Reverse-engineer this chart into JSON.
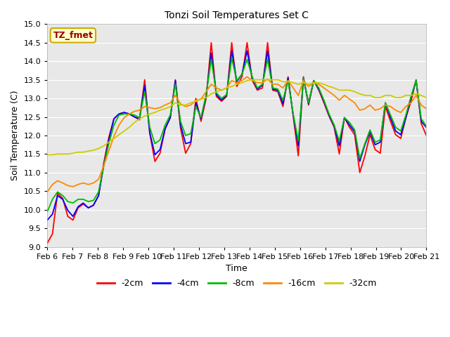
{
  "title": "Tonzi Soil Temperatures Set C",
  "xlabel": "Time",
  "ylabel": "Soil Temperature (C)",
  "ylim": [
    9.0,
    15.0
  ],
  "yticks": [
    9.0,
    9.5,
    10.0,
    10.5,
    11.0,
    11.5,
    12.0,
    12.5,
    13.0,
    13.5,
    14.0,
    14.5,
    15.0
  ],
  "outer_bg": "#ffffff",
  "plot_bg_color": "#e8e8e8",
  "legend_label": "TZ_fmet",
  "legend_bg": "#ffffcc",
  "legend_border": "#ccaa00",
  "series_colors": {
    "-2cm": "#ff0000",
    "-4cm": "#0000ff",
    "-8cm": "#00bb00",
    "-16cm": "#ff8800",
    "-32cm": "#cccc00"
  },
  "x_tick_labels": [
    "Feb 6",
    "Feb 7",
    "Feb 8",
    "Feb 9",
    "Feb 10",
    "Feb 11",
    "Feb 12",
    "Feb 13",
    "Feb 14",
    "Feb 15",
    "Feb 16",
    "Feb 17",
    "Feb 18",
    "Feb 19",
    "Feb 20",
    "Feb 21"
  ],
  "series": {
    "-2cm": [
      9.1,
      9.35,
      10.45,
      10.3,
      9.82,
      9.72,
      10.05,
      10.15,
      10.05,
      10.12,
      10.38,
      11.25,
      11.95,
      12.45,
      12.58,
      12.62,
      12.58,
      12.5,
      12.42,
      13.5,
      12.05,
      11.3,
      11.52,
      12.18,
      12.48,
      13.5,
      12.2,
      11.52,
      11.78,
      13.0,
      12.38,
      13.0,
      14.5,
      13.05,
      12.92,
      13.05,
      14.5,
      13.32,
      13.58,
      14.5,
      13.48,
      13.22,
      13.28,
      14.5,
      13.22,
      13.18,
      12.78,
      13.58,
      12.52,
      11.45,
      13.58,
      12.82,
      13.48,
      13.22,
      12.88,
      12.52,
      12.22,
      11.5,
      12.48,
      12.22,
      12.02,
      11.0,
      11.45,
      12.02,
      11.62,
      11.52,
      12.78,
      12.38,
      12.02,
      11.92,
      12.48,
      12.92,
      13.5,
      12.32,
      12.0
    ],
    "-4cm": [
      9.72,
      9.88,
      10.38,
      10.28,
      9.98,
      9.82,
      10.08,
      10.18,
      10.05,
      10.12,
      10.38,
      11.18,
      11.88,
      12.45,
      12.58,
      12.62,
      12.58,
      12.5,
      12.45,
      13.35,
      12.08,
      11.48,
      11.62,
      12.18,
      12.48,
      13.48,
      12.28,
      11.78,
      11.82,
      12.88,
      12.45,
      13.05,
      14.22,
      13.1,
      12.95,
      13.08,
      14.28,
      13.45,
      13.65,
      14.28,
      13.55,
      13.25,
      13.35,
      14.28,
      13.25,
      13.22,
      12.85,
      13.55,
      12.55,
      11.72,
      13.55,
      12.85,
      13.48,
      13.25,
      12.92,
      12.55,
      12.25,
      11.72,
      12.48,
      12.28,
      12.1,
      11.3,
      11.75,
      12.1,
      11.75,
      11.82,
      12.88,
      12.48,
      12.12,
      12.02,
      12.48,
      13.02,
      13.48,
      12.38,
      12.22
    ],
    "-8cm": [
      9.95,
      10.28,
      10.48,
      10.38,
      10.22,
      10.18,
      10.28,
      10.28,
      10.22,
      10.25,
      10.48,
      11.18,
      11.78,
      12.28,
      12.55,
      12.58,
      12.58,
      12.55,
      12.48,
      13.18,
      12.22,
      11.78,
      11.88,
      12.28,
      12.55,
      13.38,
      12.38,
      12.0,
      12.05,
      12.78,
      12.48,
      13.1,
      14.05,
      13.15,
      13.0,
      13.1,
      14.08,
      13.48,
      13.65,
      14.05,
      13.58,
      13.28,
      13.38,
      14.05,
      13.28,
      13.25,
      12.95,
      13.48,
      12.58,
      11.85,
      13.55,
      12.88,
      13.48,
      13.28,
      12.95,
      12.58,
      12.28,
      11.85,
      12.48,
      12.35,
      12.15,
      11.38,
      11.78,
      12.15,
      11.82,
      11.88,
      12.88,
      12.55,
      12.22,
      12.12,
      12.55,
      13.05,
      13.48,
      12.45,
      12.25
    ],
    "-16cm": [
      10.48,
      10.68,
      10.78,
      10.72,
      10.65,
      10.62,
      10.68,
      10.72,
      10.68,
      10.72,
      10.82,
      11.18,
      11.58,
      11.98,
      12.28,
      12.48,
      12.58,
      12.65,
      12.68,
      12.78,
      12.75,
      12.72,
      12.75,
      12.82,
      12.88,
      13.08,
      12.85,
      12.78,
      12.82,
      12.95,
      12.98,
      13.18,
      13.38,
      13.28,
      13.22,
      13.28,
      13.48,
      13.42,
      13.48,
      13.58,
      13.48,
      13.42,
      13.42,
      13.52,
      13.38,
      13.38,
      13.28,
      13.48,
      13.28,
      13.08,
      13.48,
      13.32,
      13.42,
      13.38,
      13.28,
      13.18,
      13.08,
      12.95,
      13.08,
      12.98,
      12.88,
      12.68,
      12.72,
      12.82,
      12.68,
      12.72,
      12.82,
      12.78,
      12.68,
      12.62,
      12.78,
      12.88,
      13.08,
      12.82,
      12.72
    ],
    "-32cm": [
      11.48,
      11.48,
      11.5,
      11.5,
      11.5,
      11.52,
      11.55,
      11.55,
      11.58,
      11.6,
      11.65,
      11.72,
      11.82,
      11.92,
      12.02,
      12.12,
      12.22,
      12.35,
      12.45,
      12.52,
      12.58,
      12.62,
      12.68,
      12.72,
      12.78,
      12.88,
      12.82,
      12.82,
      12.88,
      12.92,
      12.98,
      13.02,
      13.12,
      13.18,
      13.22,
      13.28,
      13.32,
      13.38,
      13.42,
      13.48,
      13.5,
      13.5,
      13.5,
      13.5,
      13.5,
      13.5,
      13.45,
      13.45,
      13.42,
      13.38,
      13.42,
      13.38,
      13.42,
      13.42,
      13.38,
      13.32,
      13.28,
      13.22,
      13.22,
      13.22,
      13.18,
      13.12,
      13.08,
      13.08,
      13.02,
      13.02,
      13.08,
      13.08,
      13.02,
      13.02,
      13.08,
      13.08,
      13.12,
      13.08,
      13.02
    ]
  }
}
